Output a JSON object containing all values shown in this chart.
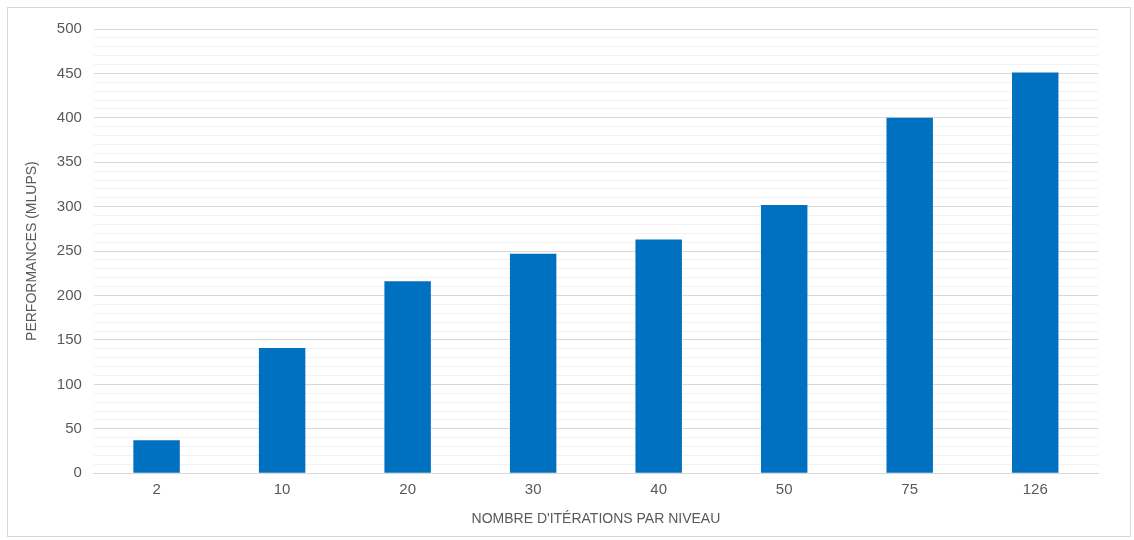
{
  "chart_data": {
    "type": "bar",
    "xlabel": "NOMBRE D'ITÉRATIONS PAR NIVEAU",
    "ylabel": "PERFORMANCES (MLUPS)",
    "categories": [
      "2",
      "10",
      "20",
      "30",
      "40",
      "50",
      "75",
      "126"
    ],
    "values": [
      37,
      141,
      216,
      247,
      263,
      302,
      400,
      451
    ],
    "color": "#0070c0",
    "ylim": [
      0,
      500
    ],
    "yticks": [
      0,
      {
        "value": 10,
        "label": null
      },
      {
        "value": 20,
        "label": null
      },
      {
        "value": 30,
        "label": null
      },
      {
        "value": 40,
        "label": null
      },
      50,
      {
        "value": 60,
        "label": null
      },
      {
        "value": 70,
        "label": null
      },
      {
        "value": 80,
        "label": null
      },
      {
        "value": 90,
        "label": null
      },
      100,
      {
        "value": 110,
        "label": null
      },
      {
        "value": 120,
        "label": null
      },
      {
        "value": 130,
        "label": null
      },
      {
        "value": 140,
        "label": null
      },
      150,
      {
        "value": 160,
        "label": null
      },
      {
        "value": 170,
        "label": null
      },
      {
        "value": 180,
        "label": null
      },
      {
        "value": 190,
        "label": null
      },
      200,
      {
        "value": 210,
        "label": null
      },
      {
        "value": 220,
        "label": null
      },
      {
        "value": 230,
        "label": null
      },
      {
        "value": 240,
        "label": null
      },
      250,
      {
        "value": 260,
        "label": null
      },
      {
        "value": 270,
        "label": null
      },
      {
        "value": 280,
        "label": null
      },
      {
        "value": 290,
        "label": null
      },
      300,
      {
        "value": 310,
        "label": null
      },
      {
        "value": 320,
        "label": null
      },
      {
        "value": 330,
        "label": null
      },
      {
        "value": 340,
        "label": null
      },
      350,
      {
        "value": 360,
        "label": null
      },
      {
        "value": 370,
        "label": null
      },
      {
        "value": 380,
        "label": null
      },
      {
        "value": 390,
        "label": null
      },
      400,
      {
        "value": 410,
        "label": null
      },
      {
        "value": 420,
        "label": null
      },
      {
        "value": 430,
        "label": null
      },
      {
        "value": 440,
        "label": null
      },
      450,
      {
        "value": 460,
        "label": null
      },
      {
        "value": 470,
        "label": null
      },
      {
        "value": 480,
        "label": null
      },
      {
        "value": 490,
        "label": null
      },
      500
    ],
    "grid": "y"
  }
}
